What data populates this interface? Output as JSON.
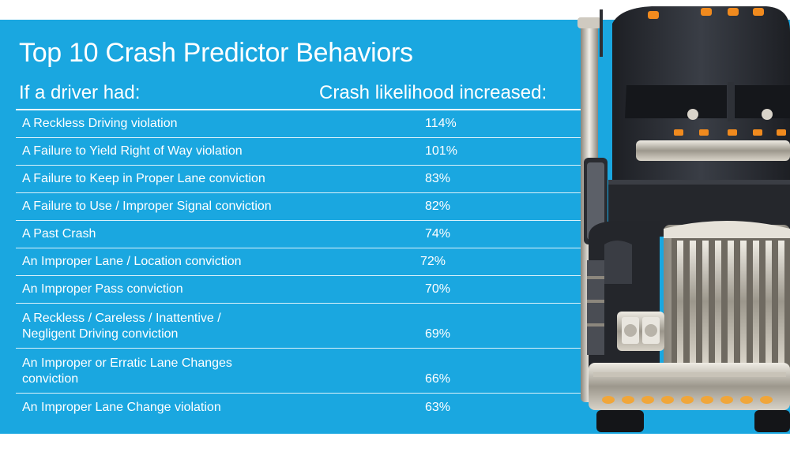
{
  "title": "Top 10 Crash Predictor Behaviors",
  "headers": {
    "behavior": "If a driver had:",
    "likelihood": "Crash likelihood increased:"
  },
  "rows": [
    {
      "label": "A Reckless Driving violation",
      "value": "114%"
    },
    {
      "label": "A Failure to Yield Right of Way violation",
      "value": "101%"
    },
    {
      "label": "A Failure to Keep in Proper Lane conviction",
      "value": "83%"
    },
    {
      "label": "A Failure to Use / Improper Signal conviction",
      "value": "82%"
    },
    {
      "label": "A Past Crash",
      "value": "74%"
    },
    {
      "label": "An Improper Lane / Location conviction",
      "value": "72%"
    },
    {
      "label": "An Improper Pass conviction",
      "value": "70%"
    },
    {
      "label_line1": "A Reckless / Careless / Inattentive /",
      "label_line2": "Negligent Driving conviction",
      "value": "69%"
    },
    {
      "label_line1": "An Improper or Erratic Lane Changes",
      "label_line2": "conviction",
      "value": "66%"
    },
    {
      "label": "An Improper Lane Change violation",
      "value": "63%"
    }
  ],
  "colors": {
    "panel": "#1aa7e0",
    "text": "#ffffff",
    "truck_body": "#2a2d33",
    "chrome": "#b9b4a8",
    "amber": "#f08a1e"
  },
  "truck_icon": "semi-truck-front-icon"
}
